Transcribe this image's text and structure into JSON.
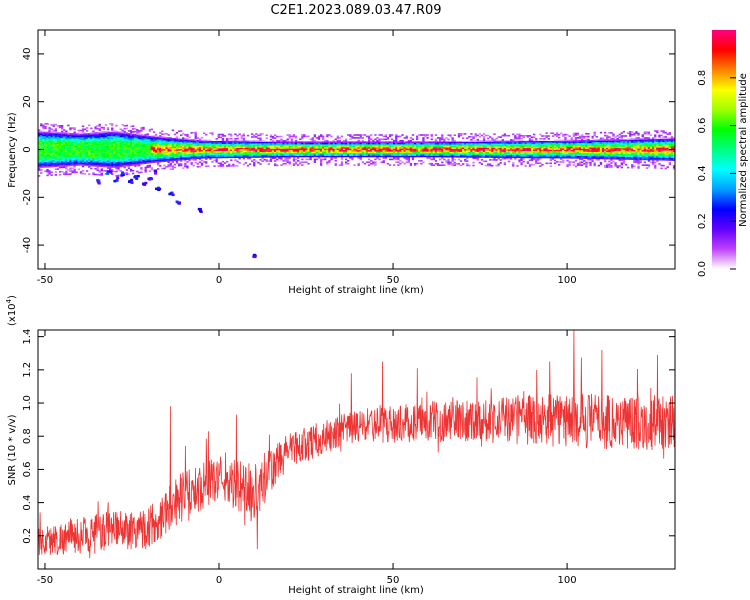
{
  "title": "C2E1.2023.089.03.47.R09",
  "chart_data": [
    {
      "type": "heatmap",
      "xlabel": "Height of straight line (km)",
      "ylabel": "Frequency (Hz)",
      "xlim": [
        -52,
        131
      ],
      "ylim": [
        -50,
        50
      ],
      "x_ticks": [
        -50,
        0,
        50,
        100
      ],
      "y_ticks": [
        -40,
        -20,
        0,
        20,
        40
      ],
      "center_frequency_hz": 0,
      "colorbar": {
        "label": "Normalized spectral amplitude",
        "range": [
          0,
          1
        ],
        "ticks": [
          "0.0",
          "0.2",
          "0.4",
          "0.6",
          "0.8"
        ],
        "colors": [
          "#ffffff",
          "#c040ff",
          "#6000ff",
          "#0000ff",
          "#00a0ff",
          "#00ffff",
          "#00ff80",
          "#00ff00",
          "#a0ff00",
          "#ffff00",
          "#ff8000",
          "#ff0000",
          "#ff0080"
        ]
      },
      "band_halfwidth_hz": [
        {
          "x": -52,
          "hw": 8
        },
        {
          "x": -40,
          "hw": 7
        },
        {
          "x": -30,
          "hw": 8
        },
        {
          "x": -20,
          "hw": 6
        },
        {
          "x": -5,
          "hw": 4
        },
        {
          "x": 20,
          "hw": 3.5
        },
        {
          "x": 60,
          "hw": 3.5
        },
        {
          "x": 100,
          "hw": 4
        },
        {
          "x": 131,
          "hw": 5
        }
      ],
      "scatter_below_band": [
        {
          "x": -32,
          "y": -9
        },
        {
          "x": -30,
          "y": -12
        },
        {
          "x": -28,
          "y": -10
        },
        {
          "x": -26,
          "y": -13
        },
        {
          "x": -24,
          "y": -11
        },
        {
          "x": -22,
          "y": -14
        },
        {
          "x": -20,
          "y": -12
        },
        {
          "x": -19,
          "y": -9
        },
        {
          "x": -18,
          "y": -16
        },
        {
          "x": -14,
          "y": -18
        },
        {
          "x": -12,
          "y": -22
        },
        {
          "x": -6,
          "y": -25
        },
        {
          "x": 10,
          "y": -44
        },
        {
          "x": -35,
          "y": -13
        }
      ]
    },
    {
      "type": "line",
      "xlabel": "Height of straight line (km)",
      "ylabel": "SNR (10 * v/v)",
      "multiplier": "(x10^4)",
      "xlim": [
        -52,
        131
      ],
      "ylim": [
        0,
        1.44
      ],
      "x_ticks": [
        -50,
        0,
        50,
        100
      ],
      "y_ticks": [
        0.2,
        0.4,
        0.6,
        0.8,
        1.0,
        1.2,
        1.4
      ],
      "color": "#ee3333",
      "envelope": [
        {
          "x": -52,
          "mean": 0.16,
          "spread": 0.07
        },
        {
          "x": -35,
          "mean": 0.22,
          "spread": 0.09
        },
        {
          "x": -20,
          "mean": 0.25,
          "spread": 0.1
        },
        {
          "x": -12,
          "mean": 0.42,
          "spread": 0.12
        },
        {
          "x": 0,
          "mean": 0.55,
          "spread": 0.1
        },
        {
          "x": 10,
          "mean": 0.45,
          "spread": 0.15
        },
        {
          "x": 20,
          "mean": 0.72,
          "spread": 0.08
        },
        {
          "x": 40,
          "mean": 0.86,
          "spread": 0.08
        },
        {
          "x": 70,
          "mean": 0.9,
          "spread": 0.1
        },
        {
          "x": 100,
          "mean": 0.9,
          "spread": 0.13
        },
        {
          "x": 131,
          "mean": 0.88,
          "spread": 0.13
        }
      ],
      "spikes": [
        {
          "x": -14,
          "y": 0.98
        },
        {
          "x": -3,
          "y": 0.83
        },
        {
          "x": 5,
          "y": 0.93
        },
        {
          "x": 11,
          "y": 0.12
        },
        {
          "x": 38,
          "y": 1.18
        },
        {
          "x": 47,
          "y": 1.25
        },
        {
          "x": 57,
          "y": 1.21
        },
        {
          "x": 95,
          "y": 1.25
        },
        {
          "x": 102,
          "y": 1.44
        },
        {
          "x": 110,
          "y": 1.32
        },
        {
          "x": 126,
          "y": 1.29
        }
      ]
    }
  ]
}
